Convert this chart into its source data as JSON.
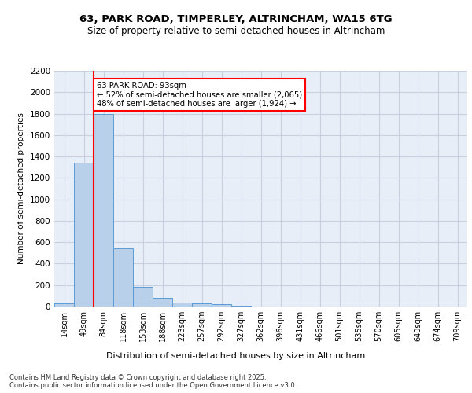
{
  "title_line1": "63, PARK ROAD, TIMPERLEY, ALTRINCHAM, WA15 6TG",
  "title_line2": "Size of property relative to semi-detached houses in Altrincham",
  "xlabel": "Distribution of semi-detached houses by size in Altrincham",
  "ylabel": "Number of semi-detached properties",
  "footer_line1": "Contains HM Land Registry data © Crown copyright and database right 2025.",
  "footer_line2": "Contains public sector information licensed under the Open Government Licence v3.0.",
  "bin_labels": [
    "14sqm",
    "49sqm",
    "84sqm",
    "118sqm",
    "153sqm",
    "188sqm",
    "223sqm",
    "257sqm",
    "292sqm",
    "327sqm",
    "362sqm",
    "396sqm",
    "431sqm",
    "466sqm",
    "501sqm",
    "535sqm",
    "570sqm",
    "605sqm",
    "640sqm",
    "674sqm",
    "709sqm"
  ],
  "bin_values": [
    30,
    1340,
    1800,
    540,
    180,
    80,
    35,
    30,
    20,
    10,
    0,
    0,
    0,
    0,
    0,
    0,
    0,
    0,
    0,
    0,
    0
  ],
  "bar_color": "#b8d0ea",
  "bar_edge_color": "#5b9bd5",
  "subject_sqm": 93,
  "subject_bin_idx": 2,
  "pct_smaller": 52,
  "pct_larger": 48,
  "n_smaller": 2065,
  "n_larger": 1924,
  "vline_color": "red",
  "bg_color": "#e8eef8",
  "grid_color": "#c8d0e0",
  "ylim": [
    0,
    2200
  ],
  "yticks": [
    0,
    200,
    400,
    600,
    800,
    1000,
    1200,
    1400,
    1600,
    1800,
    2000,
    2200
  ]
}
